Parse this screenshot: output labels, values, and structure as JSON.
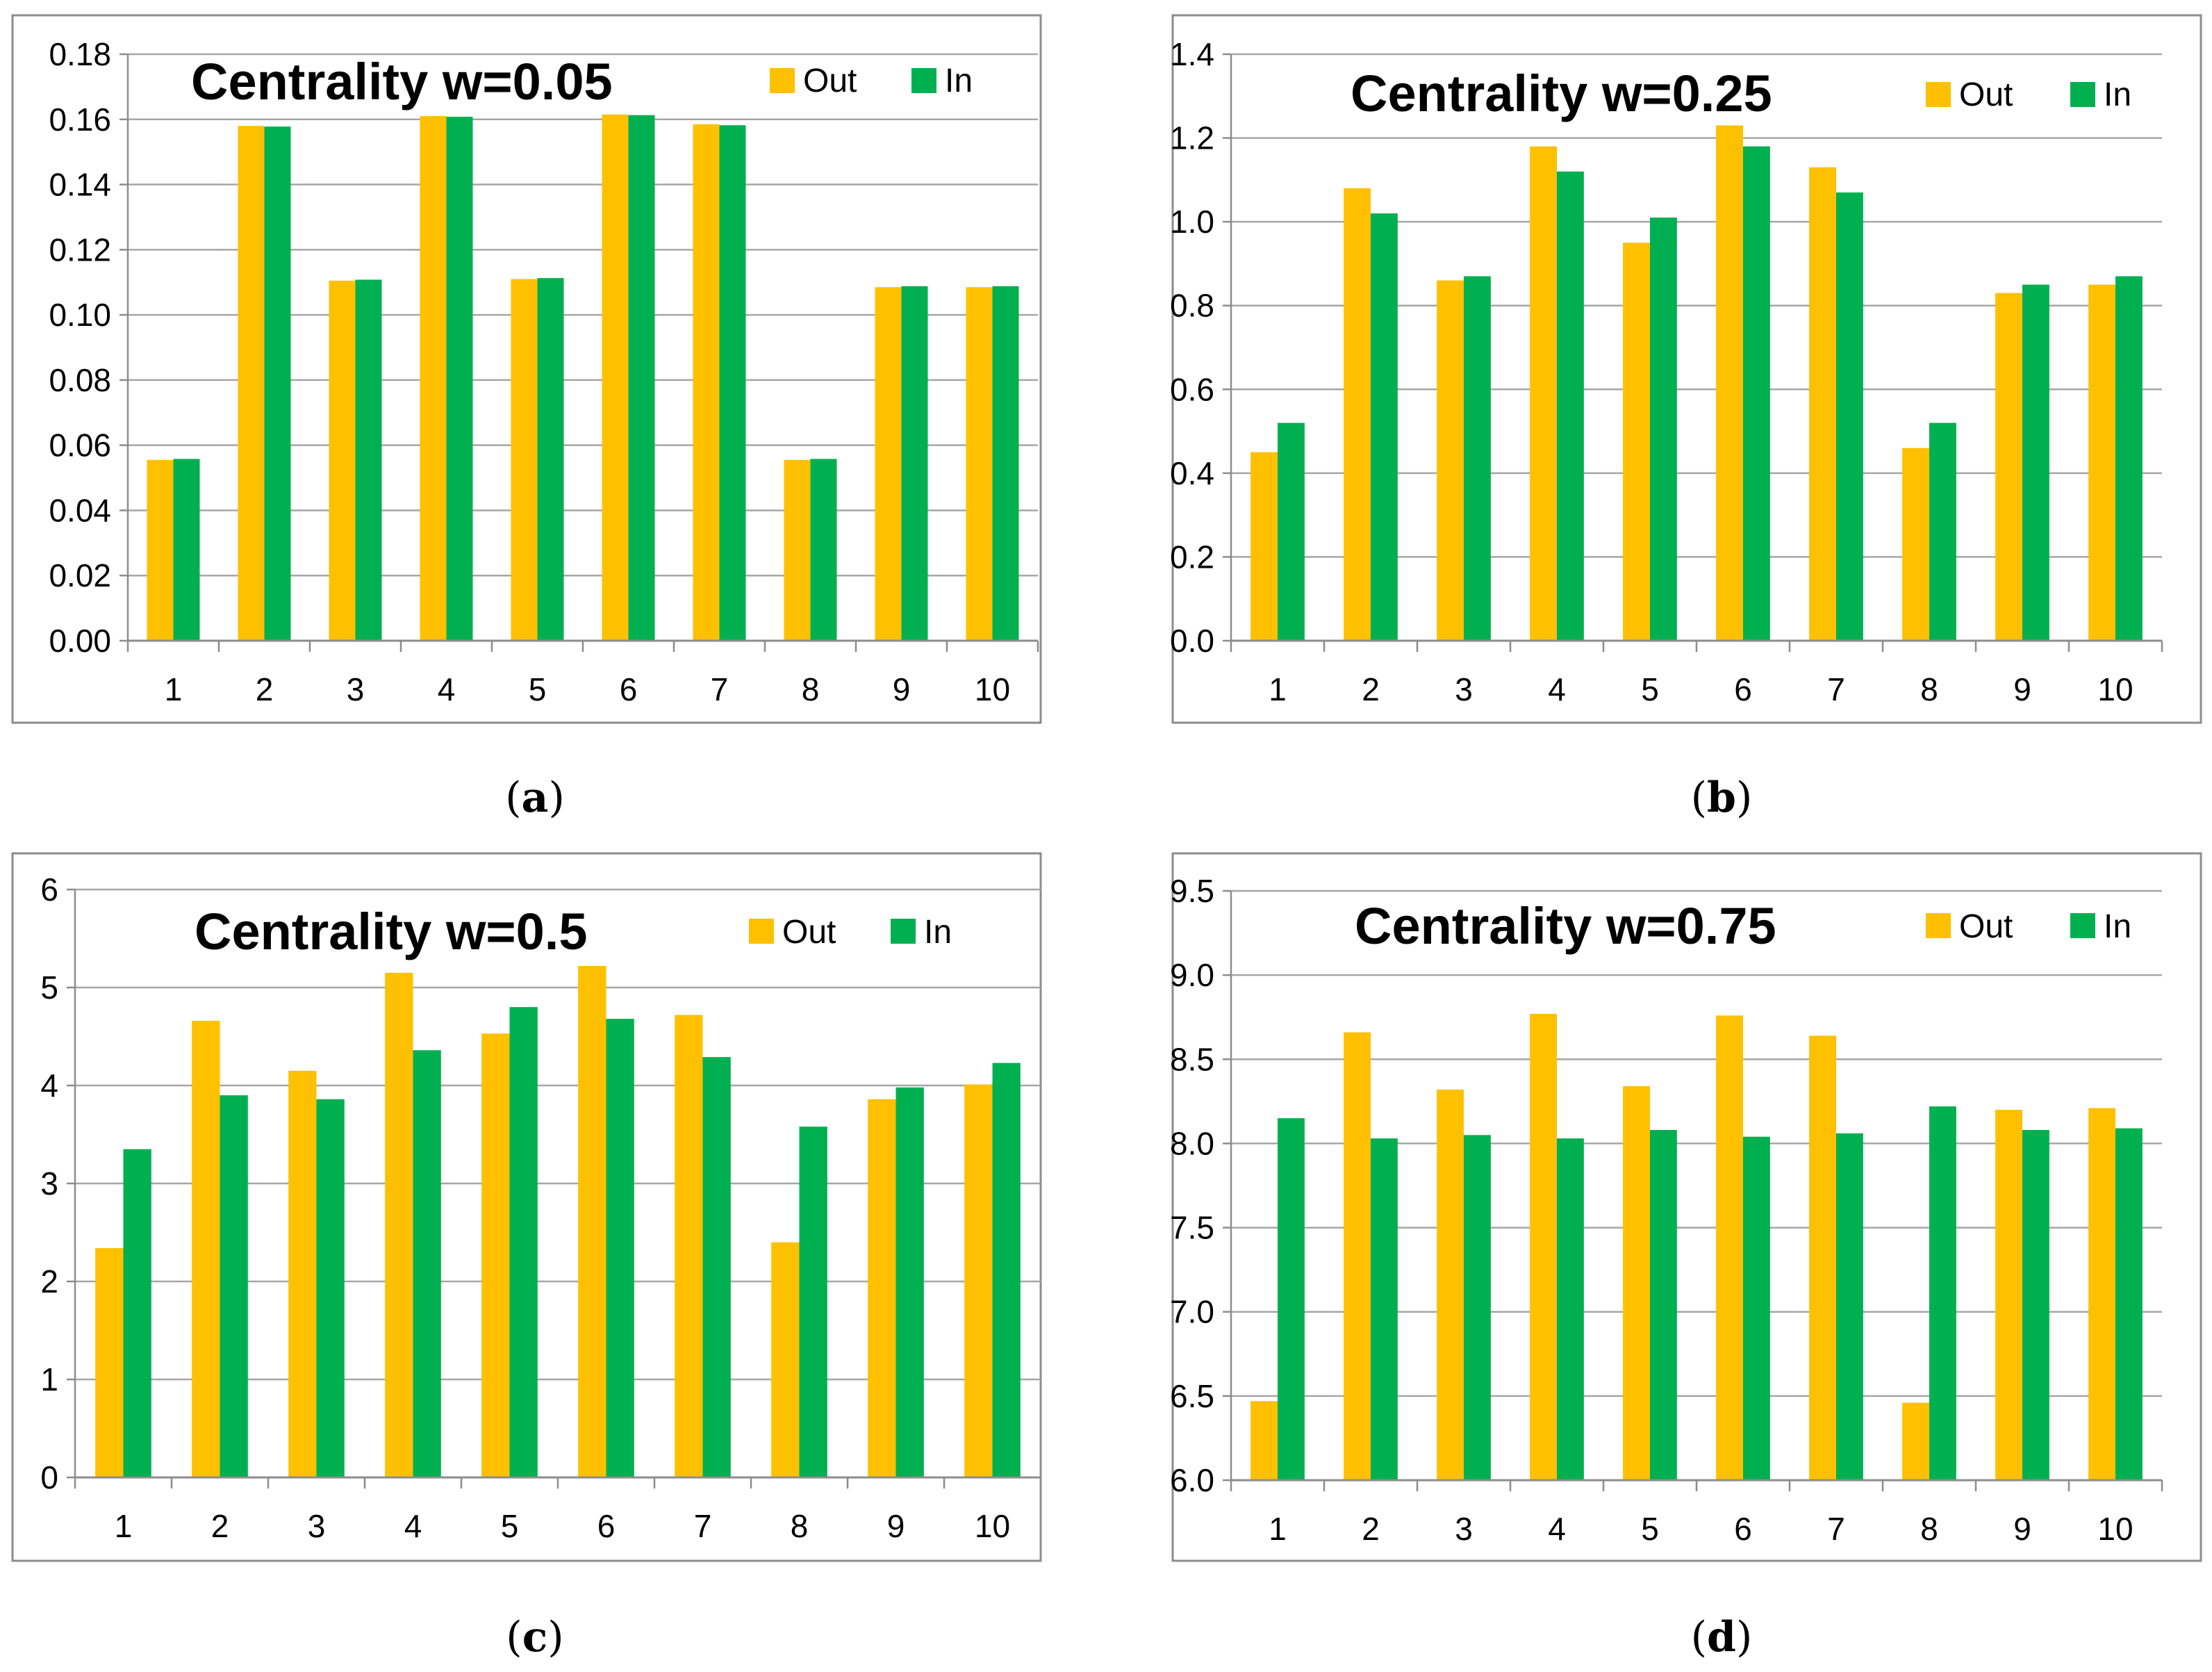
{
  "colors": {
    "out": "#FFC000",
    "in": "#00B050",
    "grid": "#A6A6A6",
    "frame": "#8C8C8C",
    "axis": "#8C8C8C"
  },
  "chart_data": [
    {
      "type": "bar",
      "panel": "a",
      "caption": "(a)",
      "title": "Centrality w=0.05",
      "categories": [
        "1",
        "2",
        "3",
        "4",
        "5",
        "6",
        "7",
        "8",
        "9",
        "10"
      ],
      "series": [
        {
          "name": "Out",
          "values": [
            0.0555,
            0.158,
            0.1105,
            0.161,
            0.111,
            0.1615,
            0.1585,
            0.0555,
            0.1085,
            0.1085
          ]
        },
        {
          "name": "In",
          "values": [
            0.0558,
            0.1578,
            0.1108,
            0.1608,
            0.1113,
            0.1613,
            0.1582,
            0.0558,
            0.1088,
            0.1088
          ]
        }
      ],
      "yticks": [
        "0.00",
        "0.02",
        "0.04",
        "0.06",
        "0.08",
        "0.10",
        "0.12",
        "0.14",
        "0.16",
        "0.18"
      ],
      "ylim": [
        0,
        0.18
      ],
      "xlabel": "",
      "ylabel": "",
      "grid": true,
      "legend": "top-right"
    },
    {
      "type": "bar",
      "panel": "b",
      "caption": "(b)",
      "title": "Centrality w=0.25",
      "categories": [
        "1",
        "2",
        "3",
        "4",
        "5",
        "6",
        "7",
        "8",
        "9",
        "10"
      ],
      "series": [
        {
          "name": "Out",
          "values": [
            0.45,
            1.08,
            0.86,
            1.18,
            0.95,
            1.23,
            1.13,
            0.46,
            0.83,
            0.85
          ]
        },
        {
          "name": "In",
          "values": [
            0.52,
            1.02,
            0.87,
            1.12,
            1.01,
            1.18,
            1.07,
            0.52,
            0.85,
            0.87
          ]
        }
      ],
      "yticks": [
        "0.0",
        "0.2",
        "0.4",
        "0.6",
        "0.8",
        "1.0",
        "1.2",
        "1.4"
      ],
      "ylim": [
        0,
        1.4
      ],
      "xlabel": "",
      "ylabel": "",
      "grid": true,
      "legend": "top-right"
    },
    {
      "type": "bar",
      "panel": "c",
      "caption": "(c)",
      "title": "Centrality w=0.5",
      "categories": [
        "1",
        "2",
        "3",
        "4",
        "5",
        "6",
        "7",
        "8",
        "9",
        "10"
      ],
      "series": [
        {
          "name": "Out",
          "values": [
            2.34,
            4.66,
            4.15,
            5.15,
            4.53,
            5.22,
            4.72,
            2.4,
            3.86,
            4.01
          ]
        },
        {
          "name": "In",
          "values": [
            3.35,
            3.9,
            3.86,
            4.36,
            4.8,
            4.68,
            4.29,
            3.58,
            3.98,
            4.23
          ]
        }
      ],
      "yticks": [
        "0",
        "1",
        "2",
        "3",
        "4",
        "5",
        "6"
      ],
      "ylim": [
        0,
        6
      ],
      "xlabel": "",
      "ylabel": "",
      "grid": true,
      "legend": "top-right"
    },
    {
      "type": "bar",
      "panel": "d",
      "caption": "(d)",
      "title": "Centrality w=0.75",
      "categories": [
        "1",
        "2",
        "3",
        "4",
        "5",
        "6",
        "7",
        "8",
        "9",
        "10"
      ],
      "series": [
        {
          "name": "Out",
          "values": [
            6.47,
            8.66,
            8.32,
            8.77,
            8.34,
            8.76,
            8.64,
            6.46,
            8.2,
            8.21
          ]
        },
        {
          "name": "In",
          "values": [
            8.15,
            8.03,
            8.05,
            8.03,
            8.08,
            8.04,
            8.06,
            8.22,
            8.08,
            8.09
          ]
        }
      ],
      "yticks": [
        "6.0",
        "6.5",
        "7.0",
        "7.5",
        "8.0",
        "8.5",
        "9.0",
        "9.5"
      ],
      "ylim": [
        6,
        9.5
      ],
      "xlabel": "",
      "ylabel": "",
      "grid": true,
      "legend": "top-right"
    }
  ]
}
